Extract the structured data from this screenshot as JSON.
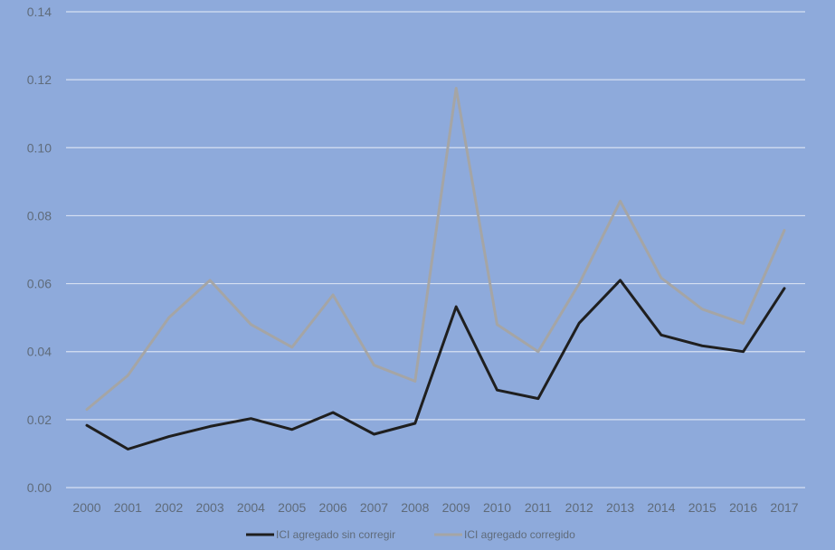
{
  "chart_data": {
    "type": "line",
    "title": "",
    "xlabel": "",
    "ylabel": "",
    "x": [
      "2000",
      "2001",
      "2002",
      "2003",
      "2004",
      "2005",
      "2006",
      "2007",
      "2008",
      "2009",
      "2010",
      "2011",
      "2012",
      "2013",
      "2014",
      "2015",
      "2016",
      "2017"
    ],
    "ylim": [
      0,
      0.14
    ],
    "yticks": [
      "0.00",
      "0.02",
      "0.04",
      "0.06",
      "0.08",
      "0.10",
      "0.12",
      "0.14"
    ],
    "grid": true,
    "legend_position": "bottom",
    "series": [
      {
        "name": "ICI agregado sin corregir",
        "color": "#1f1f1f",
        "values": [
          0.0183,
          0.0113,
          0.015,
          0.018,
          0.0203,
          0.0171,
          0.0221,
          0.0157,
          0.0189,
          0.0532,
          0.0287,
          0.0262,
          0.0484,
          0.061,
          0.0449,
          0.0417,
          0.04,
          0.0586
        ]
      },
      {
        "name": "ICI agregado corregido",
        "color": "#a5a5a5",
        "values": [
          0.023,
          0.033,
          0.05,
          0.061,
          0.048,
          0.0413,
          0.0567,
          0.036,
          0.0313,
          0.1175,
          0.048,
          0.04,
          0.06,
          0.0843,
          0.0617,
          0.0525,
          0.0483,
          0.0757
        ]
      }
    ]
  }
}
